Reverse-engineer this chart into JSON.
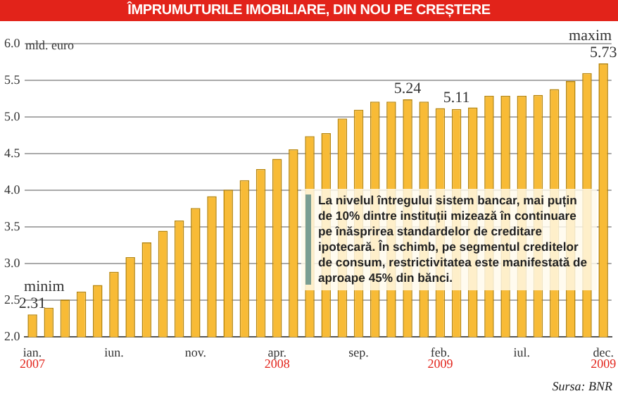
{
  "chart_data": {
    "type": "bar",
    "title": "ÎMPRUMUTURILE IMOBILIARE, DIN NOU PE CREȘTERE",
    "ylabel": "mld. euro",
    "categories": [
      "ian.",
      null,
      null,
      null,
      null,
      "iun.",
      null,
      null,
      null,
      null,
      "nov.",
      null,
      null,
      null,
      null,
      "apr.",
      null,
      null,
      null,
      null,
      "sep.",
      null,
      null,
      null,
      null,
      "feb.",
      null,
      null,
      null,
      null,
      "iul.",
      null,
      null,
      null,
      null,
      "dec."
    ],
    "values": [
      2.31,
      2.4,
      2.51,
      2.62,
      2.71,
      2.89,
      3.09,
      3.29,
      3.45,
      3.59,
      3.76,
      3.92,
      4.01,
      4.14,
      4.29,
      4.43,
      4.56,
      4.74,
      4.78,
      4.98,
      5.1,
      5.21,
      5.21,
      5.24,
      5.21,
      5.12,
      5.11,
      5.13,
      5.29,
      5.29,
      5.29,
      5.3,
      5.38,
      5.49,
      5.6,
      5.73
    ],
    "value_labels": [
      "2.31",
      null,
      null,
      null,
      null,
      null,
      null,
      null,
      null,
      null,
      null,
      null,
      null,
      null,
      null,
      null,
      null,
      null,
      null,
      null,
      null,
      null,
      null,
      "5.24",
      null,
      null,
      "5.11",
      null,
      null,
      null,
      null,
      null,
      null,
      null,
      null,
      "5.73"
    ],
    "color": "#f8bb36",
    "ylim": [
      2.0,
      6.0
    ],
    "yticks": [
      {
        "value": 2,
        "label": "2.0"
      },
      {
        "value": 2.5,
        "label": "2.5"
      },
      {
        "value": 3,
        "label": "3.0"
      },
      {
        "value": 3.5,
        "label": "3.5"
      },
      {
        "value": 4,
        "label": "4.0"
      },
      {
        "value": 4.5,
        "label": "4.5"
      },
      {
        "value": 5,
        "label": "5.0"
      },
      {
        "value": 5.5,
        "label": "5.5"
      },
      {
        "value": 6,
        "label": "6.0"
      }
    ],
    "grid": "y",
    "legend": false,
    "annotations": [
      {
        "text": "minim",
        "x": "ian.",
        "y": 2.31
      },
      {
        "text": "maxim",
        "x": "dec.",
        "y": 5.73
      },
      {
        "text": "2007",
        "x": "ian."
      },
      {
        "text": "2008",
        "x": "apr."
      },
      {
        "text": "2009",
        "x": "feb."
      },
      {
        "text": "2009",
        "x": "dec."
      },
      "La nivelul întregului sistem bancar, mai puțin de 10% dintre instituții mizează în continuare pe înăsprirea standardelor de creditare ipotecară. În schimb, pe segmentul creditelor de consum, restrictivitatea este manifestată de aproape 45% din bănci.",
      "Sursa: BNR"
    ]
  }
}
